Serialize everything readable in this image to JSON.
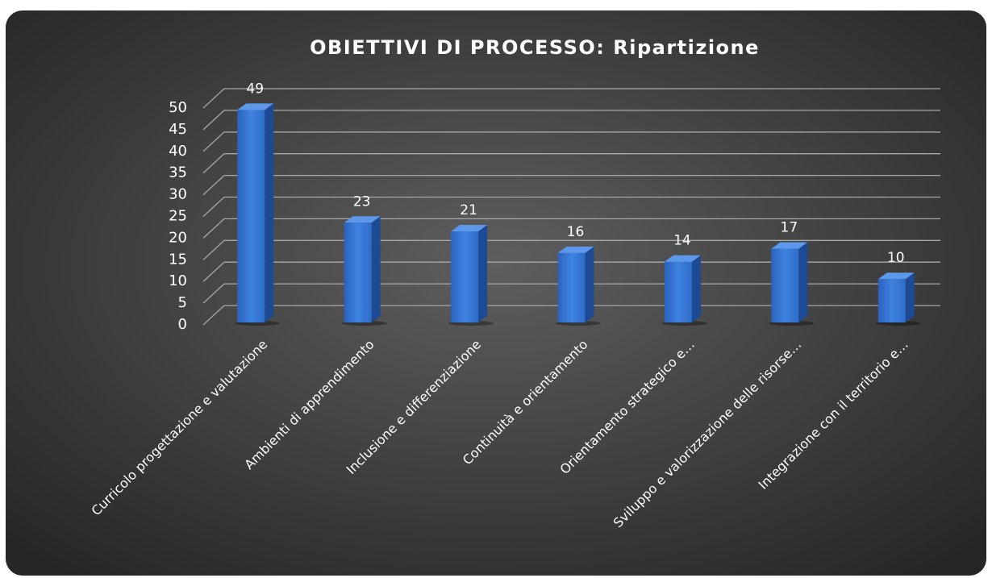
{
  "chart_data": {
    "type": "bar3d",
    "title": "OBIETTIVI DI PROCESSO: Ripartizione",
    "categories": [
      "Curricolo progettazione e valutazione",
      "Ambienti di apprendimento",
      "Inclusione e differenziazione",
      "Continuità e orientamento",
      "Orientamento strategico e…",
      "Sviluppo e valorizzazione delle risorse…",
      "Integrazione con il territorio e…"
    ],
    "values": [
      49,
      23,
      21,
      16,
      14,
      17,
      10
    ],
    "color": "#3a7ad8",
    "ylim": [
      0,
      50
    ],
    "yticks": [
      0,
      5,
      10,
      15,
      20,
      25,
      30,
      35,
      40,
      45,
      50
    ],
    "grid": true
  }
}
